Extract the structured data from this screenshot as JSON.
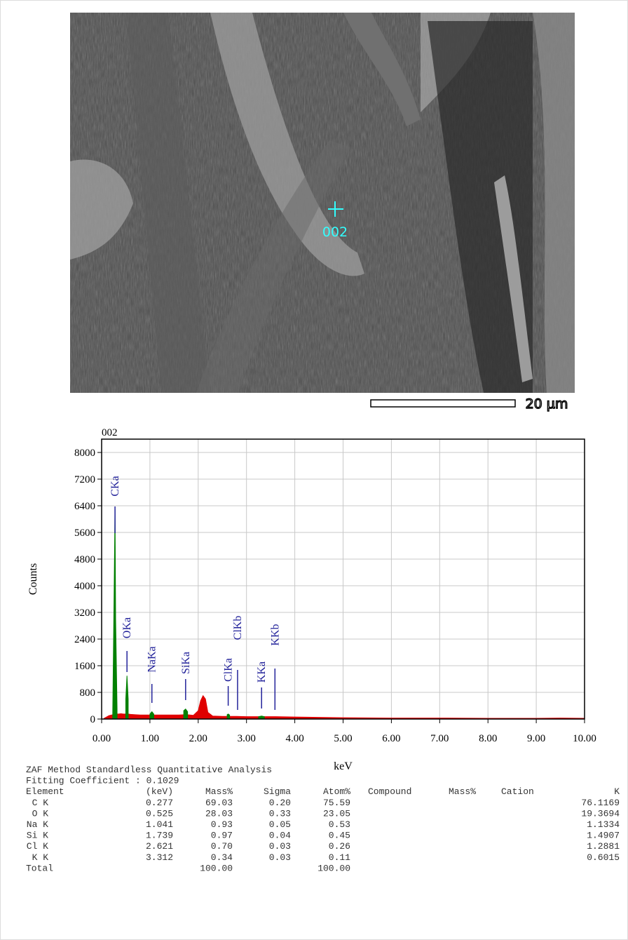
{
  "sem_image": {
    "point_label": "002",
    "scale_label": "20 µm"
  },
  "chart_data": {
    "type": "area",
    "title": "002",
    "x_label": "keV",
    "y_label": "Counts",
    "xlim": [
      0,
      10
    ],
    "ylim": [
      0,
      8400
    ],
    "xticks": [
      {
        "value": 0,
        "label": "0.00"
      },
      {
        "value": 1,
        "label": "1.00"
      },
      {
        "value": 2,
        "label": "2.00"
      },
      {
        "value": 3,
        "label": "3.00"
      },
      {
        "value": 4,
        "label": "4.00"
      },
      {
        "value": 5,
        "label": "5.00"
      },
      {
        "value": 6,
        "label": "6.00"
      },
      {
        "value": 7,
        "label": "7.00"
      },
      {
        "value": 8,
        "label": "8.00"
      },
      {
        "value": 9,
        "label": "9.00"
      },
      {
        "value": 10,
        "label": "10.00"
      }
    ],
    "yticks": [
      0,
      800,
      1600,
      2400,
      3200,
      4000,
      4800,
      5600,
      6400,
      7200,
      8000
    ],
    "grid": true,
    "x": [
      0.05,
      0.1,
      0.15,
      0.2,
      0.23,
      0.26,
      0.277,
      0.29,
      0.32,
      0.35,
      0.4,
      0.45,
      0.5,
      0.525,
      0.55,
      0.6,
      0.7,
      0.8,
      0.9,
      1.0,
      1.041,
      1.08,
      1.2,
      1.4,
      1.6,
      1.7,
      1.739,
      1.78,
      1.9,
      2.0,
      2.05,
      2.1,
      2.15,
      2.2,
      2.3,
      2.5,
      2.6,
      2.621,
      2.65,
      2.8,
      3.0,
      3.25,
      3.312,
      3.37,
      3.6,
      4.0,
      4.5,
      5.0,
      6.0,
      7.0,
      8.0,
      9.0,
      9.5,
      10.0
    ],
    "series": [
      {
        "color": "#e00000",
        "values": [
          20,
          60,
          100,
          120,
          130,
          140,
          150,
          150,
          150,
          150,
          160,
          150,
          150,
          150,
          150,
          140,
          130,
          120,
          120,
          120,
          130,
          120,
          120,
          120,
          120,
          130,
          130,
          130,
          110,
          250,
          550,
          700,
          600,
          200,
          90,
          80,
          80,
          80,
          80,
          80,
          70,
          70,
          70,
          70,
          70,
          60,
          50,
          40,
          30,
          30,
          20,
          20,
          30,
          20
        ]
      },
      {
        "color": "#008000",
        "values": [
          null,
          null,
          null,
          null,
          200,
          4000,
          6300,
          3000,
          300,
          null,
          null,
          null,
          600,
          1300,
          600,
          null,
          null,
          null,
          null,
          150,
          220,
          150,
          null,
          null,
          null,
          250,
          300,
          220,
          null,
          null,
          null,
          null,
          null,
          null,
          null,
          null,
          130,
          150,
          120,
          null,
          null,
          70,
          90,
          70,
          null,
          null,
          null,
          null,
          null,
          null,
          null,
          null,
          null,
          null
        ]
      }
    ],
    "peaks": [
      {
        "label": "CKa",
        "x": 0.277
      },
      {
        "label": "OKa",
        "x": 0.525
      },
      {
        "label": "NaKa",
        "x": 1.041
      },
      {
        "label": "SiKa",
        "x": 1.739
      },
      {
        "label": "ClKa",
        "x": 2.621
      },
      {
        "label": "ClKb",
        "x": 2.815
      },
      {
        "label": "KKa",
        "x": 3.312
      },
      {
        "label": "KKb",
        "x": 3.589
      }
    ]
  },
  "table": {
    "title": "ZAF Method Standardless Quantitative Analysis",
    "fitting": "Fitting Coefficient : 0.1029",
    "columns": [
      "Element",
      "(keV)",
      "Mass%",
      "Sigma",
      "Atom%",
      "Compound",
      "Mass%",
      "Cation",
      "K"
    ],
    "rows": [
      [
        "C K",
        "0.277",
        "69.03",
        "0.20",
        "75.59",
        "76.1169"
      ],
      [
        "O K",
        "0.525",
        "28.03",
        "0.33",
        "23.05",
        "19.3694"
      ],
      [
        "Na K",
        "1.041",
        "0.93",
        "0.05",
        "0.53",
        "1.1334"
      ],
      [
        "Si K",
        "1.739",
        "0.97",
        "0.04",
        "0.45",
        "1.4907"
      ],
      [
        "Cl K",
        "2.621",
        "0.70",
        "0.03",
        "0.26",
        "1.2881"
      ],
      [
        "K K",
        "3.312",
        "0.34",
        "0.03",
        "0.11",
        "0.6015"
      ]
    ],
    "total": [
      "Total",
      "100.00",
      "100.00"
    ]
  }
}
